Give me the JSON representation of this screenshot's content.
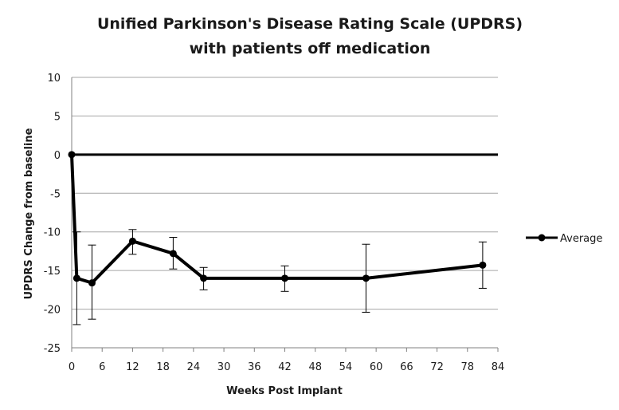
{
  "chart_data": {
    "type": "line",
    "title_line1": "Unified Parkinson's  Disease Rating Scale (UPDRS)",
    "title_line2": "with patients off medication",
    "xlabel": "Weeks Post Implant",
    "ylabel": "UPDRS Change from baseline",
    "xlim": [
      0,
      84
    ],
    "ylim": [
      -25,
      10
    ],
    "x_ticks": [
      0,
      6,
      12,
      18,
      24,
      30,
      36,
      42,
      48,
      54,
      60,
      66,
      72,
      78,
      84
    ],
    "y_ticks": [
      10,
      5,
      0,
      -5,
      -10,
      -15,
      -20,
      -25
    ],
    "grid": "horizontal",
    "legend_position": "right",
    "series": [
      {
        "name": "Average",
        "color": "#000000",
        "x": [
          0,
          1,
          4,
          12,
          20,
          26,
          42,
          58,
          81
        ],
        "y": [
          0,
          -16,
          -16.6,
          -11.2,
          -12.8,
          -16,
          -16,
          -16,
          -14.3
        ],
        "error_low": [
          0,
          -22,
          -21.3,
          -12.9,
          -14.8,
          -17.5,
          -17.7,
          -20.4,
          -17.3
        ],
        "error_high": [
          0,
          -10,
          -11.7,
          -9.7,
          -10.7,
          -14.6,
          -14.4,
          -11.6,
          -11.3
        ]
      }
    ],
    "reference_line": {
      "y": 0,
      "color": "#000000"
    }
  }
}
